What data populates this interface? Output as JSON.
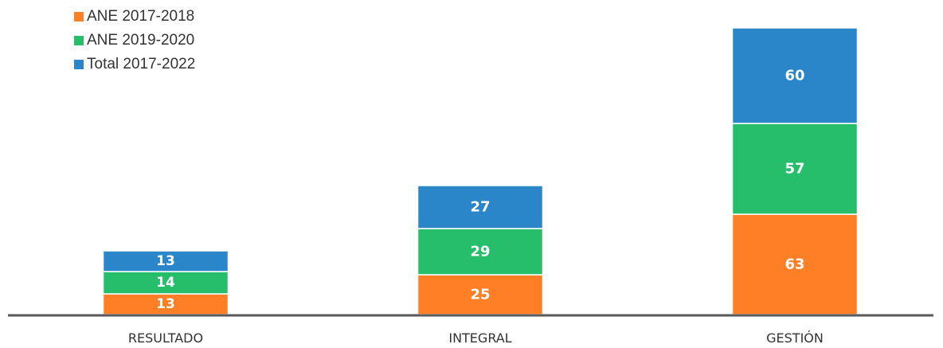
{
  "chart_data": {
    "type": "bar",
    "stacked": true,
    "categories": [
      "RESULTADO",
      "INTEGRAL",
      "GESTIÓN"
    ],
    "series": [
      {
        "name": "ANE 2017-2018",
        "values": [
          13,
          25,
          63
        ],
        "color": "#FF7F27"
      },
      {
        "name": "ANE 2019-2020",
        "values": [
          14,
          29,
          57
        ],
        "color": "#27BE6B"
      },
      {
        "name": "Total 2017-2022",
        "values": [
          13,
          27,
          60
        ],
        "color": "#2A86C8"
      }
    ],
    "title": "",
    "xlabel": "",
    "ylabel": "",
    "ylim": [
      0,
      180
    ],
    "grid": false,
    "legend_position": "top-left",
    "data_labels": true
  }
}
